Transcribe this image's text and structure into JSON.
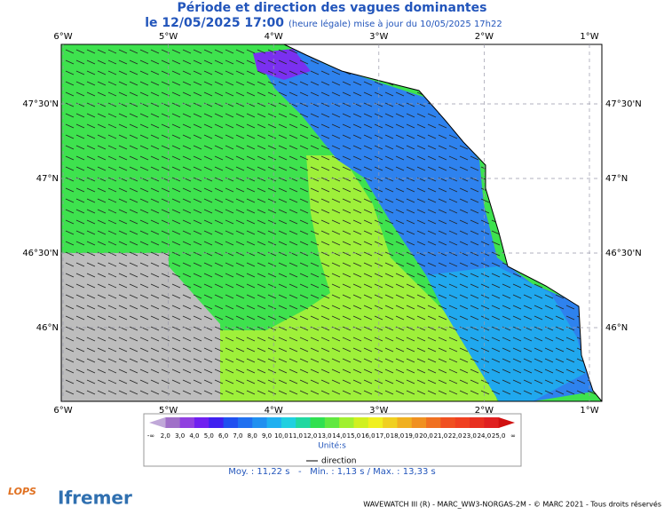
{
  "header": {
    "title": "Période et direction des vagues dominantes",
    "date": "le 12/05/2025 17:00",
    "update": "(heure légale) mise à jour du 10/05/2025 17h22"
  },
  "map": {
    "lon_labels": [
      "6°W",
      "5°W",
      "4°W",
      "3°W",
      "2°W",
      "1°W"
    ],
    "lat_labels": [
      "47°30'N",
      "47°N",
      "46°30'N",
      "46°N"
    ]
  },
  "legend": {
    "labels": [
      "-∞",
      "2,0",
      "3,0",
      "4,0",
      "5,0",
      "6,0",
      "7,0",
      "8,0",
      "9,0",
      "10,0",
      "11,0",
      "12,0",
      "13,0",
      "14,0",
      "15,0",
      "16,0",
      "17,0",
      "18,0",
      "19,0",
      "20,0",
      "21,0",
      "22,0",
      "23,0",
      "24,0",
      "25,0",
      "∞"
    ],
    "colors": [
      "#c0a8d8",
      "#a070c8",
      "#9040e0",
      "#7020f0",
      "#4020f0",
      "#2050f0",
      "#2070f0",
      "#2090f0",
      "#20b0f0",
      "#20d0e0",
      "#20d8a0",
      "#30e050",
      "#60e840",
      "#a0f030",
      "#d0f020",
      "#f0f020",
      "#f0d020",
      "#f0b020",
      "#f09020",
      "#f07020",
      "#f05020",
      "#f04020",
      "#e83020",
      "#e02020",
      "#d01010"
    ],
    "unit": "Unité:s",
    "direction": "direction",
    "stats": "Moy. : 11,22 s   -   Min. : 1,13 s / Max. : 13,33 s"
  },
  "footer": {
    "credit": "WAVEWATCH III (R) - MARC_WW3-NORGAS-2M - © MARC 2021 - Tous droits réservés",
    "logos": [
      "LOPS",
      "Ifremer"
    ]
  }
}
